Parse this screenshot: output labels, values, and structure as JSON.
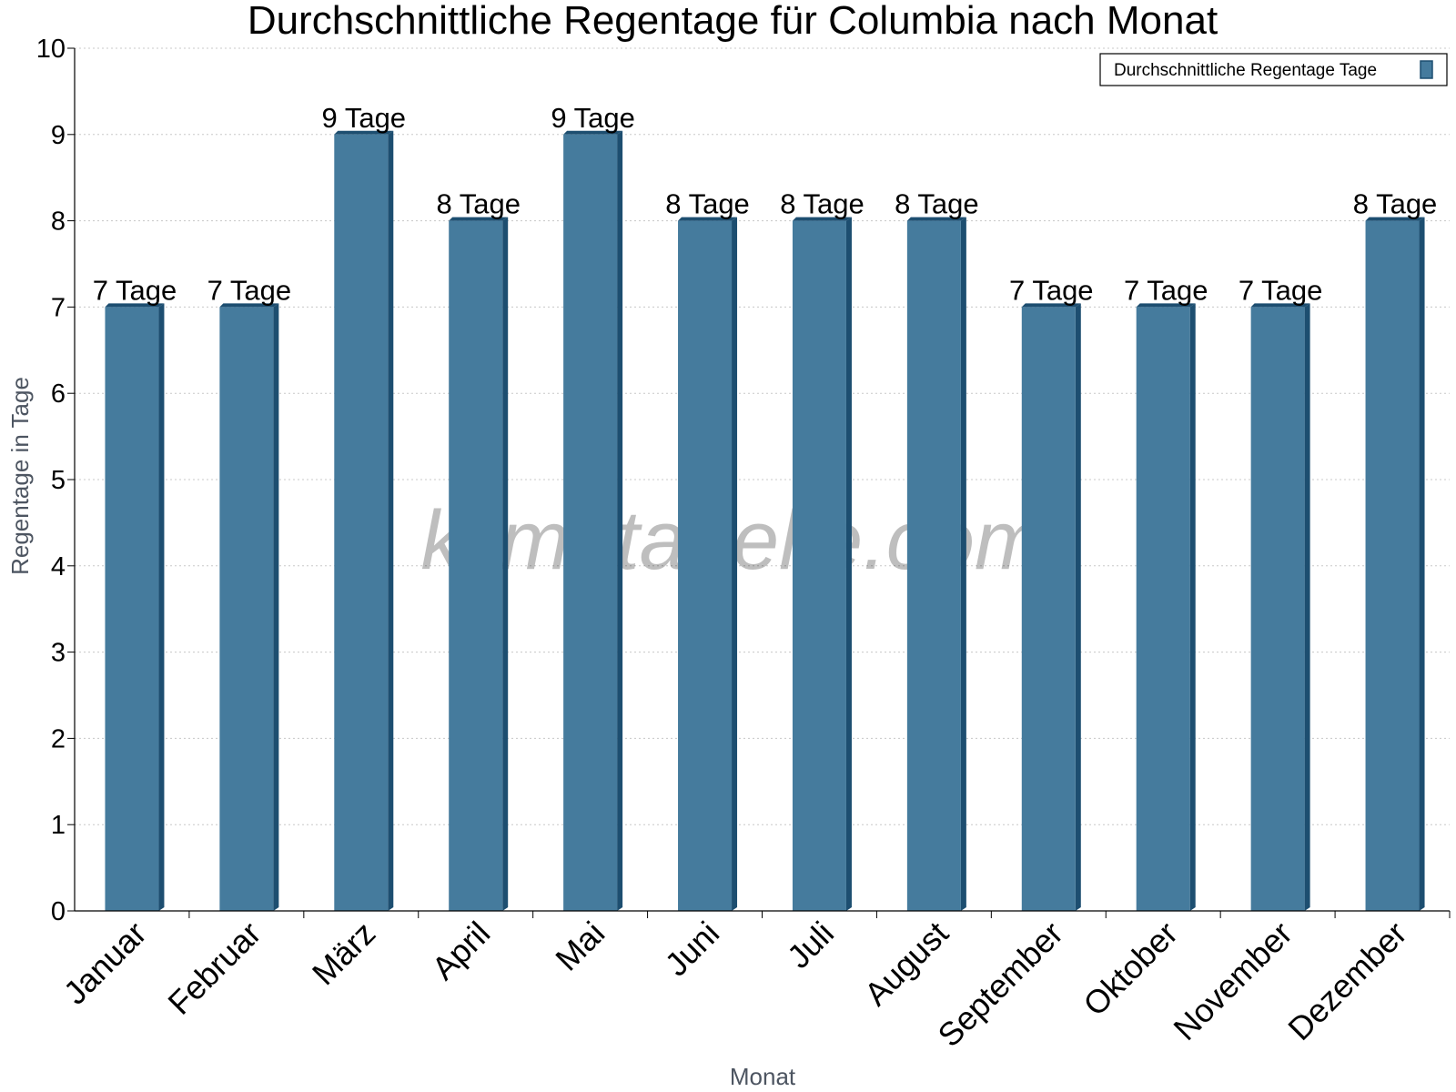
{
  "chart_data": {
    "type": "bar",
    "title": "Durchschnittliche Regentage für Columbia nach Monat",
    "xlabel": "Monat",
    "ylabel": "Regentage in Tage",
    "categories": [
      "Januar",
      "Februar",
      "März",
      "April",
      "Mai",
      "Juni",
      "Juli",
      "August",
      "September",
      "Oktober",
      "November",
      "Dezember"
    ],
    "series": [
      {
        "name": "Durchschnittliche Regentage Tage",
        "values": [
          7,
          7,
          9,
          8,
          9,
          8,
          8,
          8,
          7,
          7,
          7,
          8
        ],
        "color": "#457b9d"
      }
    ],
    "data_labels": [
      "7 Tage",
      "7 Tage",
      "9 Tage",
      "8 Tage",
      "9 Tage",
      "8 Tage",
      "8 Tage",
      "8 Tage",
      "7 Tage",
      "7 Tage",
      "7 Tage",
      "8 Tage"
    ],
    "ylim": [
      0,
      10
    ],
    "yticks": [
      "0",
      "1",
      "2",
      "3",
      "4",
      "5",
      "6",
      "7",
      "8",
      "9",
      "10"
    ],
    "grid": true,
    "legend_position": "top-right"
  },
  "watermark": "klimatabelle.com",
  "colors": {
    "bar": "#457b9d",
    "bar_side": "#1d4e70",
    "grid": "#c8c8c8"
  }
}
